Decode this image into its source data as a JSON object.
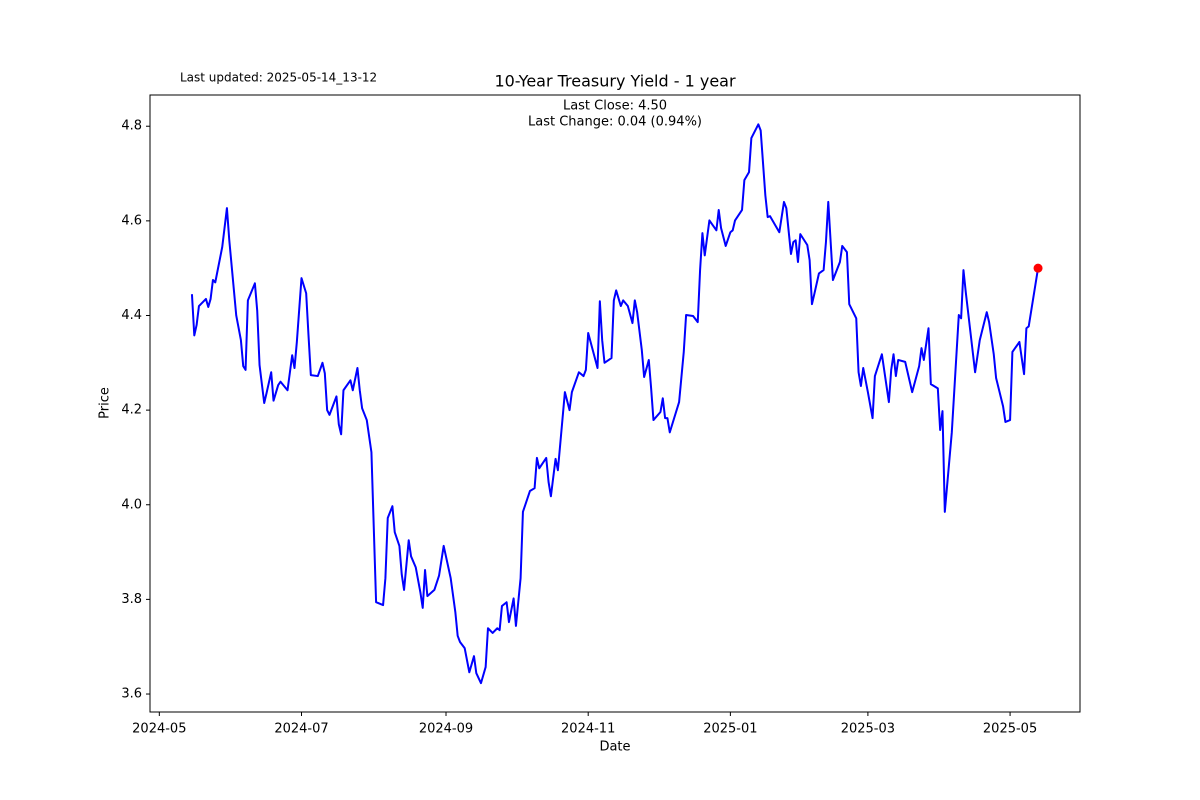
{
  "chart_data": {
    "type": "line",
    "title": "10-Year Treasury Yield - 1 year",
    "subtitle": "Last updated: 2025-05-14_13-12",
    "annotations": [
      "Last Close: 4.50",
      "Last Change: 0.04 (0.94%)"
    ],
    "xlabel": "Date",
    "ylabel": "Price",
    "color": "#0000ff",
    "highlight_last": true,
    "highlight_color": "#ff0000",
    "grid": false,
    "xlim": [
      "2024-04-27",
      "2025-05-31"
    ],
    "xticks": [
      "2024-05",
      "2024-07",
      "2024-09",
      "2024-11",
      "2025-01",
      "2025-03",
      "2025-05"
    ],
    "ylim": [
      3.562,
      4.866
    ],
    "yticks": [
      3.6,
      3.8,
      {
        "value": 4,
        "label": "4.0"
      },
      4.2,
      4.4,
      4.6,
      4.8
    ],
    "x": [
      "2024-05-15",
      "2024-05-16",
      "2024-05-17",
      "2024-05-18",
      "2024-05-21",
      "2024-05-22",
      "2024-05-23",
      "2024-05-24",
      "2024-05-25",
      "2024-05-28",
      "2024-05-30",
      "2024-05-31",
      "2024-06-03",
      "2024-06-05",
      "2024-06-06",
      "2024-06-07",
      "2024-06-08",
      "2024-06-11",
      "2024-06-12",
      "2024-06-13",
      "2024-06-15",
      "2024-06-16",
      "2024-06-18",
      "2024-06-19",
      "2024-06-21",
      "2024-06-22",
      "2024-06-25",
      "2024-06-27",
      "2024-06-28",
      "2024-06-29",
      "2024-07-01",
      "2024-07-03",
      "2024-07-04",
      "2024-07-05",
      "2024-07-08",
      "2024-07-10",
      "2024-07-11",
      "2024-07-12",
      "2024-07-13",
      "2024-07-16",
      "2024-07-17",
      "2024-07-18",
      "2024-07-19",
      "2024-07-22",
      "2024-07-23",
      "2024-07-25",
      "2024-07-26",
      "2024-07-27",
      "2024-07-29",
      "2024-07-31",
      "2024-08-02",
      "2024-08-05",
      "2024-08-06",
      "2024-08-07",
      "2024-08-09",
      "2024-08-10",
      "2024-08-12",
      "2024-08-13",
      "2024-08-14",
      "2024-08-16",
      "2024-08-17",
      "2024-08-19",
      "2024-08-21",
      "2024-08-22",
      "2024-08-23",
      "2024-08-24",
      "2024-08-27",
      "2024-08-29",
      "2024-08-31",
      "2024-09-03",
      "2024-09-05",
      "2024-09-06",
      "2024-09-07",
      "2024-09-09",
      "2024-09-11",
      "2024-09-13",
      "2024-09-14",
      "2024-09-16",
      "2024-09-18",
      "2024-09-19",
      "2024-09-21",
      "2024-09-23",
      "2024-09-24",
      "2024-09-25",
      "2024-09-27",
      "2024-09-28",
      "2024-09-30",
      "2024-10-01",
      "2024-10-03",
      "2024-10-04",
      "2024-10-07",
      "2024-10-09",
      "2024-10-10",
      "2024-10-11",
      "2024-10-14",
      "2024-10-15",
      "2024-10-16",
      "2024-10-18",
      "2024-10-19",
      "2024-10-21",
      "2024-10-22",
      "2024-10-24",
      "2024-10-25",
      "2024-10-28",
      "2024-10-30",
      "2024-10-31",
      "2024-11-01",
      "2024-11-05",
      "2024-11-06",
      "2024-11-07",
      "2024-11-08",
      "2024-11-11",
      "2024-11-12",
      "2024-11-13",
      "2024-11-15",
      "2024-11-16",
      "2024-11-18",
      "2024-11-20",
      "2024-11-21",
      "2024-11-22",
      "2024-11-24",
      "2024-11-25",
      "2024-11-27",
      "2024-11-28",
      "2024-11-29",
      "2024-12-02",
      "2024-12-03",
      "2024-12-04",
      "2024-12-05",
      "2024-12-06",
      "2024-12-10",
      "2024-12-12",
      "2024-12-13",
      "2024-12-16",
      "2024-12-18",
      "2024-12-19",
      "2024-12-20",
      "2024-12-21",
      "2024-12-23",
      "2024-12-26",
      "2024-12-27",
      "2024-12-28",
      "2024-12-30",
      "2025-01-01",
      "2025-01-02",
      "2025-01-03",
      "2025-01-06",
      "2025-01-07",
      "2025-01-09",
      "2025-01-10",
      "2025-01-13",
      "2025-01-14",
      "2025-01-16",
      "2025-01-17",
      "2025-01-18",
      "2025-01-22",
      "2025-01-24",
      "2025-01-25",
      "2025-01-27",
      "2025-01-28",
      "2025-01-29",
      "2025-01-30",
      "2025-01-31",
      "2025-02-03",
      "2025-02-04",
      "2025-02-05",
      "2025-02-06",
      "2025-02-08",
      "2025-02-10",
      "2025-02-11",
      "2025-02-12",
      "2025-02-14",
      "2025-02-17",
      "2025-02-18",
      "2025-02-20",
      "2025-02-21",
      "2025-02-24",
      "2025-02-25",
      "2025-02-26",
      "2025-02-27",
      "2025-03-01",
      "2025-03-03",
      "2025-03-04",
      "2025-03-07",
      "2025-03-10",
      "2025-03-11",
      "2025-03-12",
      "2025-03-13",
      "2025-03-14",
      "2025-03-17",
      "2025-03-20",
      "2025-03-23",
      "2025-03-24",
      "2025-03-25",
      "2025-03-27",
      "2025-03-28",
      "2025-03-31",
      "2025-04-01",
      "2025-04-02",
      "2025-04-03",
      "2025-04-06",
      "2025-04-09",
      "2025-04-10",
      "2025-04-11",
      "2025-04-12",
      "2025-04-16",
      "2025-04-18",
      "2025-04-21",
      "2025-04-22",
      "2025-04-24",
      "2025-04-25",
      "2025-04-28",
      "2025-04-29",
      "2025-05-01",
      "2025-05-02",
      "2025-05-05",
      "2025-05-07",
      "2025-05-08",
      "2025-05-09",
      "2025-05-13"
    ],
    "values": [
      4.445,
      4.358,
      4.38,
      4.42,
      4.435,
      4.418,
      4.435,
      4.475,
      4.47,
      4.545,
      4.627,
      4.56,
      4.4,
      4.348,
      4.293,
      4.285,
      4.432,
      4.468,
      4.41,
      4.295,
      4.215,
      4.236,
      4.28,
      4.22,
      4.253,
      4.26,
      4.242,
      4.316,
      4.289,
      4.344,
      4.479,
      4.447,
      4.358,
      4.274,
      4.272,
      4.3,
      4.278,
      4.2,
      4.19,
      4.229,
      4.17,
      4.149,
      4.242,
      4.263,
      4.242,
      4.289,
      4.242,
      4.204,
      4.179,
      4.111,
      3.794,
      3.788,
      3.845,
      3.972,
      3.997,
      3.942,
      3.913,
      3.853,
      3.82,
      3.925,
      3.891,
      3.868,
      3.815,
      3.782,
      3.862,
      3.807,
      3.82,
      3.85,
      3.913,
      3.845,
      3.773,
      3.723,
      3.71,
      3.697,
      3.646,
      3.68,
      3.644,
      3.623,
      3.657,
      3.739,
      3.729,
      3.739,
      3.735,
      3.786,
      3.794,
      3.752,
      3.802,
      3.744,
      3.845,
      3.985,
      4.029,
      4.035,
      4.099,
      4.077,
      4.099,
      4.048,
      4.018,
      4.097,
      4.073,
      4.183,
      4.238,
      4.2,
      4.238,
      4.28,
      4.272,
      4.285,
      4.363,
      4.289,
      4.43,
      4.348,
      4.3,
      4.31,
      4.432,
      4.453,
      4.42,
      4.432,
      4.42,
      4.384,
      4.432,
      4.407,
      4.327,
      4.27,
      4.306,
      4.246,
      4.179,
      4.196,
      4.225,
      4.183,
      4.183,
      4.153,
      4.217,
      4.323,
      4.401,
      4.399,
      4.386,
      4.496,
      4.574,
      4.527,
      4.601,
      4.58,
      4.623,
      4.585,
      4.547,
      4.576,
      4.58,
      4.601,
      4.623,
      4.686,
      4.703,
      4.775,
      4.804,
      4.791,
      4.654,
      4.608,
      4.61,
      4.576,
      4.64,
      4.627,
      4.53,
      4.555,
      4.559,
      4.513,
      4.572,
      4.549,
      4.517,
      4.424,
      4.445,
      4.489,
      4.496,
      4.555,
      4.64,
      4.475,
      4.513,
      4.547,
      4.534,
      4.424,
      4.394,
      4.28,
      4.251,
      4.289,
      4.238,
      4.183,
      4.272,
      4.318,
      4.217,
      4.285,
      4.318,
      4.272,
      4.306,
      4.302,
      4.238,
      4.293,
      4.331,
      4.306,
      4.373,
      4.255,
      4.246,
      4.158,
      4.198,
      3.985,
      4.153,
      4.401,
      4.394,
      4.496,
      4.449,
      4.28,
      4.348,
      4.407,
      4.386,
      4.318,
      4.268,
      4.208,
      4.175,
      4.179,
      4.323,
      4.344,
      4.276,
      4.373,
      4.377,
      4.5
    ]
  }
}
